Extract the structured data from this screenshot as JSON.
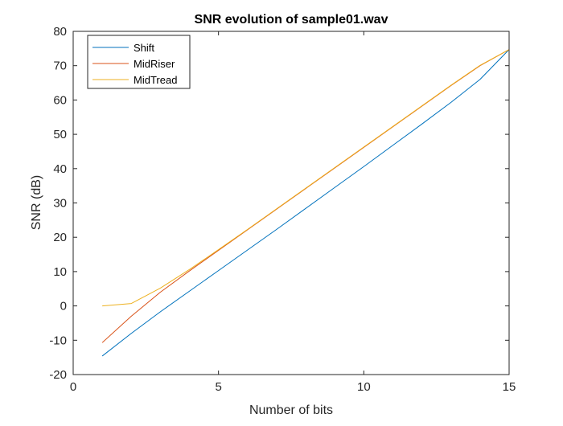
{
  "chart_data": {
    "type": "line",
    "title": "SNR evolution of sample01.wav",
    "xlabel": "Number of bits",
    "ylabel": "SNR (dB)",
    "xlim": [
      0,
      15
    ],
    "ylim": [
      -20,
      80
    ],
    "xticks": [
      0,
      5,
      10,
      15
    ],
    "yticks": [
      -20,
      -10,
      0,
      10,
      20,
      30,
      40,
      50,
      60,
      70,
      80
    ],
    "grid": false,
    "legend_position": "top-left",
    "series": [
      {
        "name": "Shift",
        "color": "#0072BD",
        "x": [
          1,
          2,
          3,
          4,
          5,
          6,
          7,
          8,
          9,
          10,
          11,
          12,
          13,
          14,
          15
        ],
        "y": [
          -14.6,
          -8.0,
          -1.7,
          4.3,
          10.3,
          16.3,
          22.3,
          28.4,
          34.5,
          40.6,
          46.8,
          53.0,
          59.3,
          66.0,
          74.7
        ]
      },
      {
        "name": "MidRiser",
        "color": "#D95319",
        "x": [
          1,
          2,
          3,
          4,
          5,
          6,
          7,
          8,
          9,
          10,
          11,
          12,
          13,
          14,
          15
        ],
        "y": [
          -10.7,
          -3.0,
          4.0,
          10.2,
          16.2,
          22.2,
          28.2,
          34.2,
          40.2,
          46.2,
          52.2,
          58.2,
          64.2,
          70.0,
          74.7
        ]
      },
      {
        "name": "MidTread",
        "color": "#EDB120",
        "x": [
          1,
          2,
          3,
          4,
          5,
          6,
          7,
          8,
          9,
          10,
          11,
          12,
          13,
          14,
          15
        ],
        "y": [
          0.0,
          0.7,
          5.2,
          10.6,
          16.4,
          22.3,
          28.3,
          34.3,
          40.3,
          46.3,
          52.3,
          58.3,
          64.3,
          70.1,
          74.7
        ]
      }
    ]
  }
}
